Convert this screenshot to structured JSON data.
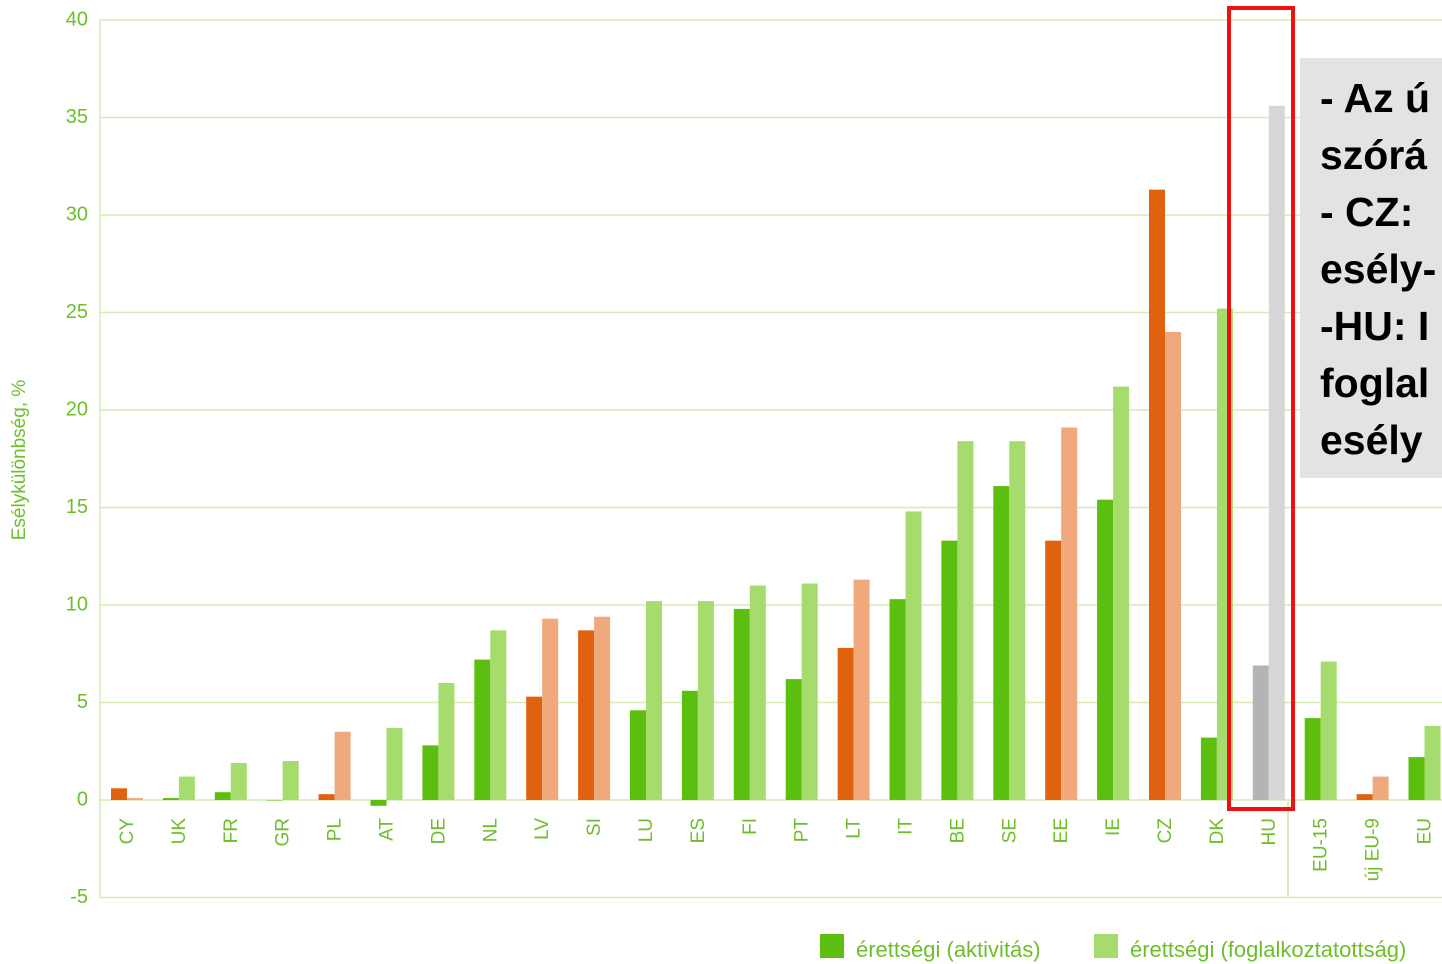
{
  "chart_data": {
    "type": "bar",
    "ylabel": "Esélykülönbség, %",
    "ylim": [
      -5,
      40
    ],
    "yticks": [
      "-5",
      "0",
      "5",
      "10",
      "15",
      "20",
      "25",
      "30",
      "35",
      "40"
    ],
    "grid": true,
    "legend_position": "bottom-right",
    "categories": [
      "CY",
      "UK",
      "FR",
      "GR",
      "PL",
      "AT",
      "DE",
      "NL",
      "LV",
      "SI",
      "LU",
      "ES",
      "FI",
      "PT",
      "LT",
      "IT",
      "BE",
      "SE",
      "EE",
      "IE",
      "CZ",
      "DK",
      "HU",
      "EU-15",
      "új EU-9",
      "EU"
    ],
    "category_colors": [
      "orange",
      "green",
      "green",
      "green",
      "orange",
      "green",
      "green",
      "green",
      "orange",
      "orange",
      "green",
      "green",
      "green",
      "green",
      "orange",
      "green",
      "green",
      "green",
      "orange",
      "green",
      "orange",
      "green",
      "gray",
      "green",
      "orange",
      "green"
    ],
    "series": [
      {
        "name": "érettségi (aktivitás)",
        "values": [
          0.6,
          0.1,
          0.4,
          0.0,
          0.3,
          -0.3,
          2.8,
          7.2,
          5.3,
          8.7,
          4.6,
          5.6,
          9.8,
          6.2,
          7.8,
          10.3,
          13.3,
          16.1,
          13.3,
          15.4,
          31.3,
          3.2,
          6.9,
          4.2,
          0.3,
          2.2
        ]
      },
      {
        "name": "érettségi (foglalkoztatottság)",
        "values": [
          0.1,
          1.2,
          1.9,
          2.0,
          3.5,
          3.7,
          6.0,
          8.7,
          9.3,
          9.4,
          10.2,
          10.2,
          11.0,
          11.1,
          11.3,
          14.8,
          18.4,
          18.4,
          19.1,
          21.2,
          24.0,
          25.2,
          35.6,
          7.1,
          1.2,
          3.8
        ]
      }
    ],
    "highlight_category": "HU"
  },
  "colors": {
    "green_dark": "#5cbf0f",
    "green_light": "#a6dc6d",
    "orange_dark": "#e0620f",
    "orange_light": "#efa97c",
    "gray_dark": "#b4b4b4",
    "gray_light": "#d7d7d7",
    "axis_text": "#6dbf2a",
    "grid": "#d4ecb4",
    "highlight_border": "#ee1111"
  },
  "callout": {
    "lines": [
      "- Az ú",
      "szórá",
      "- CZ:",
      "esély-",
      "-HU: I",
      "foglal",
      "esély"
    ]
  }
}
